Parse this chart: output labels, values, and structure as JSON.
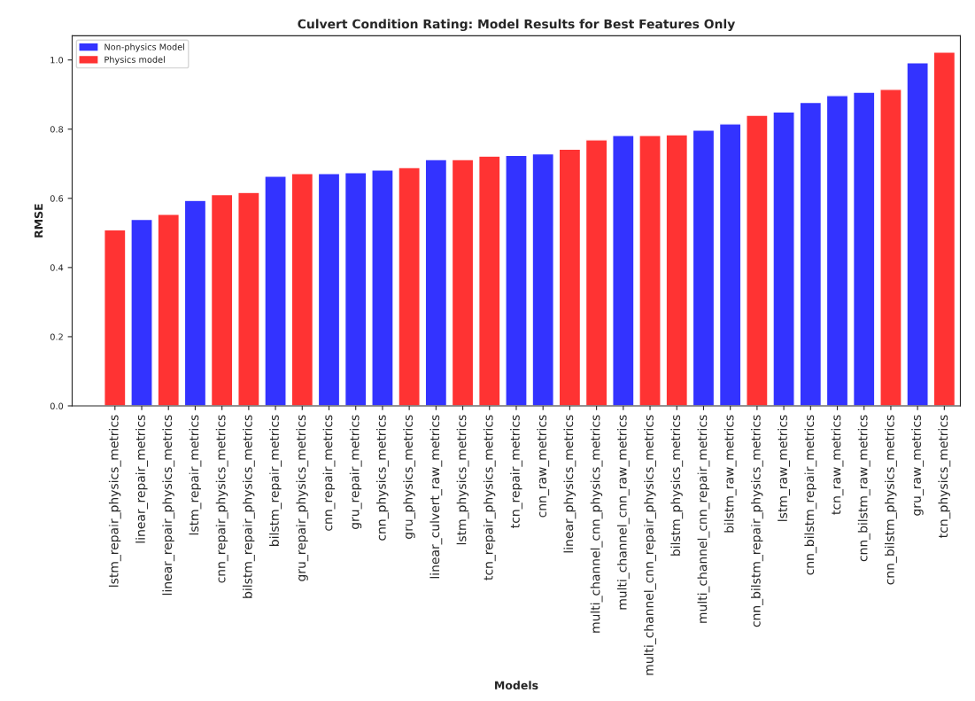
{
  "chart_data": {
    "type": "bar",
    "title": "Culvert Condition Rating: Model Results for Best Features Only",
    "xlabel": "Models",
    "ylabel": "RMSE",
    "categories": [
      "lstm_repair_physics_metrics",
      "linear_repair_metrics",
      "linear_repair_physics_metrics",
      "lstm_repair_metrics",
      "cnn_repair_physics_metrics",
      "bilstm_repair_physics_metrics",
      "bilstm_repair_metrics",
      "gru_repair_physics_metrics",
      "cnn_repair_metrics",
      "gru_repair_metrics",
      "cnn_physics_metrics",
      "gru_physics_metrics",
      "linear_culvert_raw_metrics",
      "lstm_physics_metrics",
      "tcn_repair_physics_metrics",
      "tcn_repair_metrics",
      "cnn_raw_metrics",
      "linear_physics_metrics",
      "multi_channel_cnn_physics_metrics",
      "multi_channel_cnn_raw_metrics",
      "multi_channel_cnn_repair_physics_metrics",
      "bilstm_physics_metrics",
      "multi_channel_cnn_repair_metrics",
      "bilstm_raw_metrics",
      "cnn_bilstm_repair_physics_metrics",
      "lstm_raw_metrics",
      "cnn_bilstm_repair_metrics",
      "tcn_raw_metrics",
      "cnn_bilstm_raw_metrics",
      "cnn_bilstm_physics_metrics",
      "gru_raw_metrics",
      "tcn_physics_metrics"
    ],
    "series": [
      {
        "name": "Non-physics Model",
        "color": "#3333ff",
        "values": [
          null,
          0.539,
          null,
          0.594,
          null,
          null,
          0.664,
          null,
          0.672,
          0.674,
          0.682,
          null,
          0.712,
          null,
          null,
          0.724,
          0.729,
          null,
          null,
          0.782,
          null,
          null,
          0.797,
          0.815,
          null,
          0.85,
          0.877,
          0.897,
          0.907,
          null,
          0.992,
          null
        ]
      },
      {
        "name": "Physics model",
        "color": "#ff3333",
        "values": [
          0.509,
          null,
          0.554,
          null,
          0.611,
          0.617,
          null,
          0.672,
          null,
          null,
          null,
          0.689,
          null,
          0.712,
          0.722,
          null,
          null,
          0.742,
          0.769,
          null,
          0.782,
          0.784,
          null,
          null,
          0.84,
          null,
          null,
          null,
          null,
          0.915,
          null,
          1.023
        ]
      }
    ],
    "ylim": [
      0,
      1.07
    ],
    "yticks": [
      {
        "value": 0,
        "label": "0.0"
      },
      0.2,
      0.4,
      0.6,
      0.8,
      {
        "value": 1,
        "label": "1.0"
      }
    ],
    "grid": false,
    "legend": "top left"
  }
}
